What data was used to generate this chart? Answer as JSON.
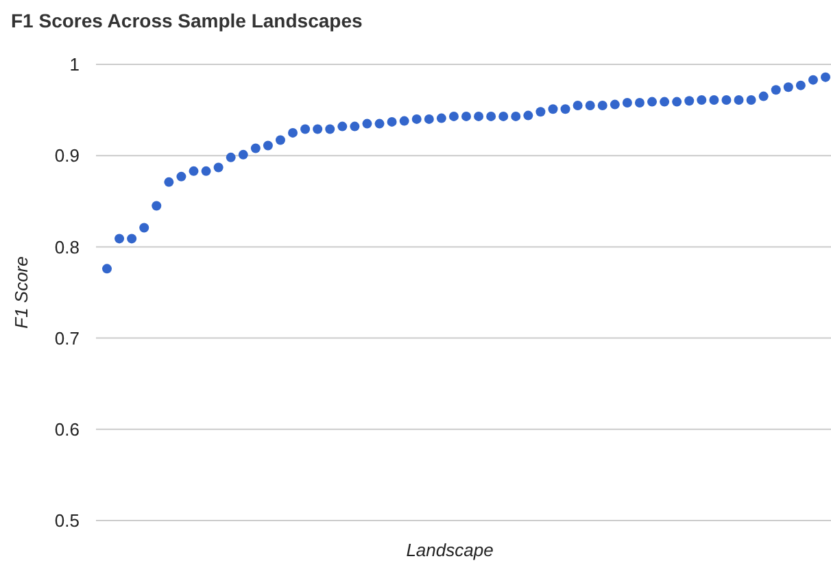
{
  "chart_data": {
    "type": "scatter",
    "title": "F1 Scores Across Sample Landscapes",
    "xlabel": "Landscape",
    "ylabel": "F1 Score",
    "categories": [
      null,
      null,
      null,
      null,
      null,
      null,
      null,
      null,
      null,
      null,
      null,
      null,
      null,
      null,
      null,
      null,
      null,
      null,
      null,
      null,
      null,
      null,
      null,
      null,
      null,
      null,
      null,
      null,
      null,
      null,
      null,
      null,
      null,
      null,
      null,
      null,
      null,
      null,
      null,
      null,
      null,
      null,
      null,
      null,
      null,
      null,
      null,
      null,
      null,
      null,
      null,
      null,
      null,
      null,
      null,
      null,
      null,
      null,
      null
    ],
    "series": [
      {
        "color": "#3366cc",
        "values": [
          0.776,
          0.809,
          0.809,
          0.821,
          0.845,
          0.871,
          0.877,
          0.883,
          0.883,
          0.887,
          0.898,
          0.901,
          0.908,
          0.911,
          0.917,
          0.925,
          0.929,
          0.929,
          0.929,
          0.932,
          0.932,
          0.935,
          0.935,
          0.937,
          0.938,
          0.94,
          0.94,
          0.941,
          0.943,
          0.943,
          0.943,
          0.943,
          0.943,
          0.943,
          0.944,
          0.948,
          0.951,
          0.951,
          0.955,
          0.955,
          0.955,
          0.956,
          0.958,
          0.958,
          0.959,
          0.959,
          0.959,
          0.96,
          0.961,
          0.961,
          0.961,
          0.961,
          0.961,
          0.965,
          0.972,
          0.975,
          0.977,
          0.983,
          0.986
        ]
      }
    ],
    "ylim": [
      0.5,
      1
    ],
    "yticks": [
      0.5,
      0.6,
      0.7,
      0.8,
      0.9,
      1
    ],
    "grid": "y",
    "marker": "circle"
  }
}
